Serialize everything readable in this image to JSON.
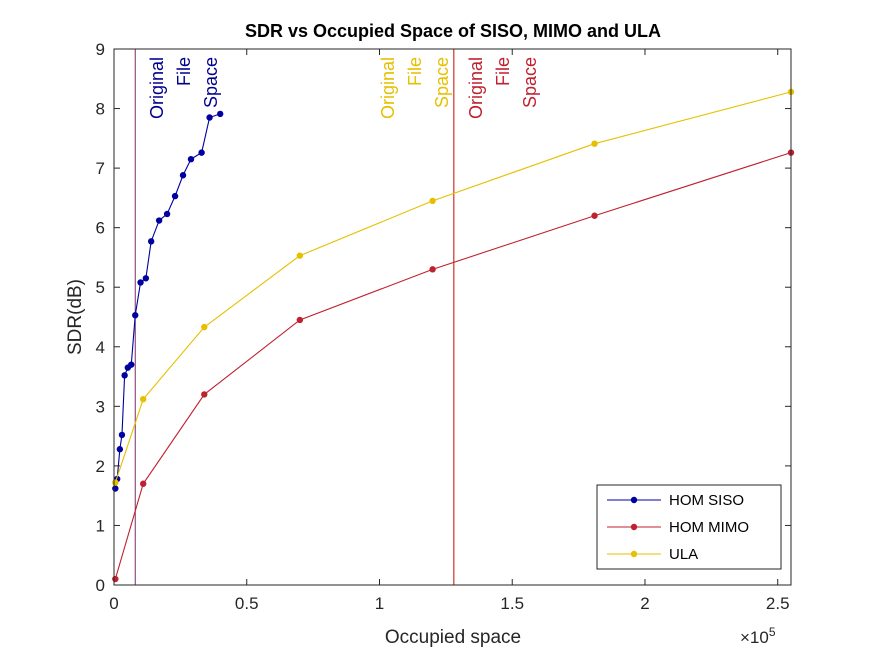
{
  "chart_data": {
    "type": "line",
    "title": "SDR vs Occupied Space of SISO, MIMO and ULA",
    "xlabel": "Occupied space",
    "ylabel": "SDR(dB)",
    "x_exponent_label": "×10",
    "x_exponent_power": "5",
    "xlim": [
      0,
      255000
    ],
    "ylim": [
      0,
      9
    ],
    "x_ticks": [
      0,
      50000,
      100000,
      150000,
      200000,
      250000
    ],
    "x_tick_labels": [
      "0",
      "0.5",
      "1",
      "1.5",
      "2",
      "2.5"
    ],
    "y_ticks": [
      0,
      1,
      2,
      3,
      4,
      5,
      6,
      7,
      8,
      9
    ],
    "y_tick_labels": [
      "0",
      "1",
      "2",
      "3",
      "4",
      "5",
      "6",
      "7",
      "8",
      "9"
    ],
    "grid": false,
    "legend_position": "bottom-right",
    "series": [
      {
        "name": "HOM SISO",
        "color": "#0000a0",
        "x": [
          500,
          1200,
          2200,
          3000,
          4000,
          5200,
          6500,
          8000,
          10000,
          12000,
          14000,
          17000,
          20000,
          23000,
          26000,
          29000,
          33000,
          36000,
          40000
        ],
        "y": [
          1.62,
          1.78,
          2.28,
          2.52,
          3.52,
          3.65,
          3.7,
          4.53,
          5.08,
          5.15,
          5.77,
          6.12,
          6.23,
          6.53,
          6.88,
          7.15,
          7.26,
          7.85,
          7.91
        ]
      },
      {
        "name": "HOM MIMO",
        "color": "#c0212f",
        "x": [
          500,
          11000,
          34000,
          70000,
          120000,
          181000,
          255000
        ],
        "y": [
          0.1,
          1.7,
          3.2,
          4.45,
          5.3,
          6.2,
          7.26
        ]
      },
      {
        "name": "ULA",
        "color": "#e6c000",
        "x": [
          500,
          11000,
          34000,
          70000,
          120000,
          181000,
          255000
        ],
        "y": [
          1.72,
          3.12,
          4.33,
          5.53,
          6.45,
          7.41,
          8.28
        ]
      }
    ],
    "reference_lines": [
      {
        "x": 8000,
        "line_color": "#7a2a6a",
        "text_color": "#000090",
        "words": [
          "Original",
          "File",
          "Space"
        ]
      },
      {
        "x": 128000,
        "line_color": "#e6a030",
        "text_color": "#e6c000",
        "words": [
          "Original",
          "File",
          "Space"
        ],
        "text_side": "left"
      },
      {
        "x": 128000,
        "line_color": "#c0212f",
        "text_color": "#c0212f",
        "words": [
          "Original",
          "File",
          "Space"
        ],
        "text_side": "right"
      }
    ]
  }
}
